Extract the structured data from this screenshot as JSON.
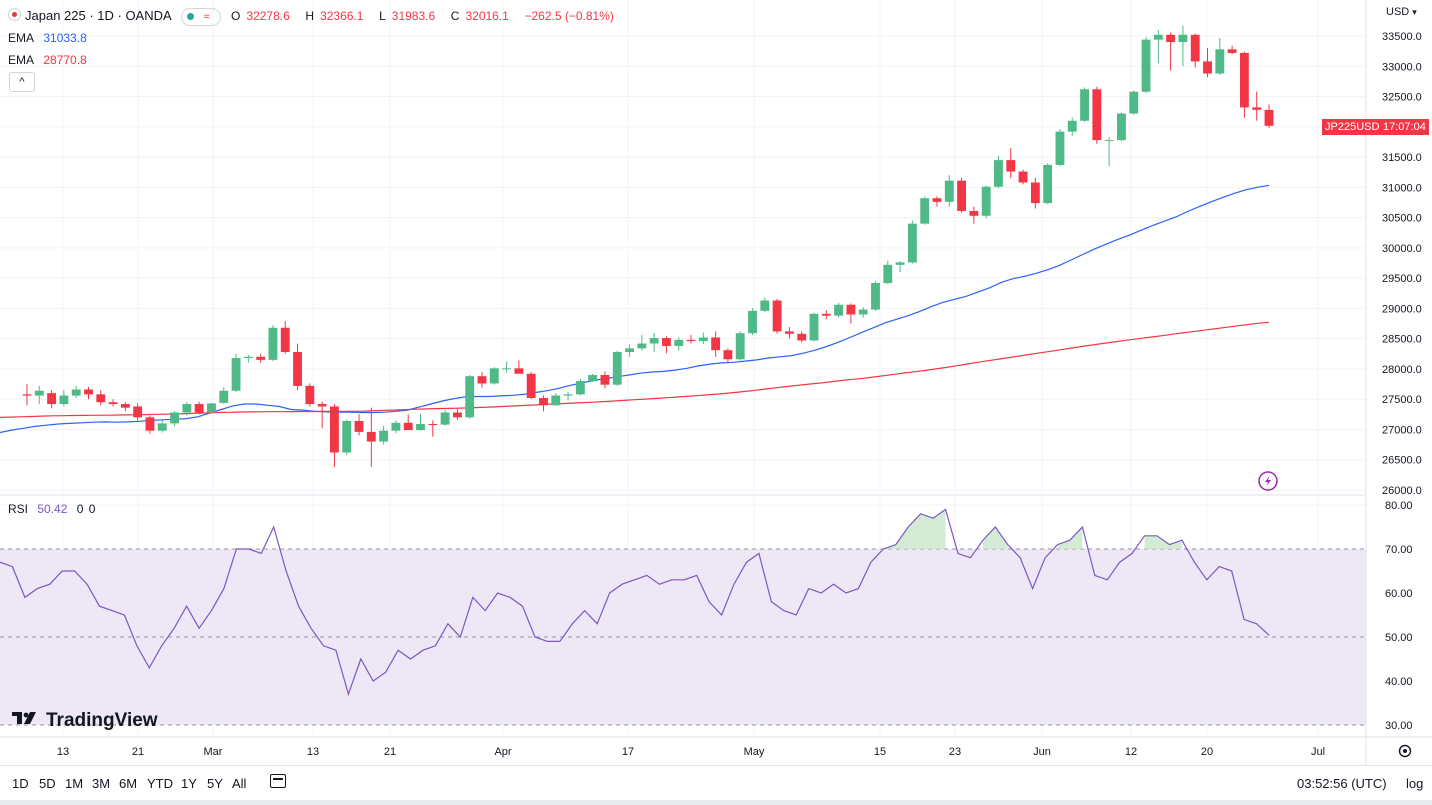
{
  "header": {
    "symbol_title": "Japan 225 · 1D · OANDA",
    "ohlc": {
      "o_label": "O",
      "o_value": "32278.6",
      "h_label": "H",
      "h_value": "32366.1",
      "l_label": "L",
      "l_value": "31983.6",
      "c_label": "C",
      "c_value": "32016.1",
      "change": "−262.5 (−0.81%)"
    },
    "change_color": "#f23645"
  },
  "indicators": {
    "ema1": {
      "label": "EMA",
      "value": "31033.8",
      "color": "#2962ff"
    },
    "ema2": {
      "label": "EMA",
      "value": "28770.8",
      "color": "#f23645"
    },
    "rsi": {
      "label": "RSI",
      "value": "50.42",
      "extra1": "0",
      "extra2": "0",
      "color": "#7e57c2"
    }
  },
  "collapse_label": "^",
  "price_axis": {
    "currency": "USD",
    "ticks": [
      "33500.0",
      "33000.0",
      "32500.0",
      "32000.0",
      "31500.0",
      "31000.0",
      "30500.0",
      "30000.0",
      "29500.0",
      "29000.0",
      "28500.0",
      "28000.0",
      "27500.0",
      "27000.0",
      "26500.0",
      "26000.0"
    ],
    "last_tag_symbol": "JP225USD",
    "last_tag_time": "17:07:04",
    "last_tag_color": "#f23645"
  },
  "rsi_axis": {
    "ticks": [
      "80.00",
      "70.00",
      "60.00",
      "50.00",
      "40.00",
      "30.00"
    ]
  },
  "time_axis": {
    "labels": [
      "13",
      "21",
      "Mar",
      "13",
      "21",
      "Apr",
      "17",
      "May",
      "15",
      "23",
      "Jun",
      "12",
      "20",
      "Jul"
    ]
  },
  "bottom_bar": {
    "ranges": [
      "1D",
      "5D",
      "1M",
      "3M",
      "6M",
      "YTD",
      "1Y",
      "5Y",
      "All"
    ],
    "clock": "03:52:56 (UTC)",
    "log_label": "log"
  },
  "branding": {
    "logo_text": "TradingView"
  },
  "colors": {
    "up": "#26a69a",
    "up_fill": "#4fb987",
    "down": "#f23645",
    "ema_fast": "#2962ff",
    "ema_slow": "#f23645",
    "rsi_line": "#7e57c2",
    "rsi_band": "#ede7f6"
  },
  "chart_data": [
    {
      "type": "candlestick",
      "title": "Japan 225 · 1D · OANDA",
      "ylim": [
        26000,
        33700
      ],
      "candles": [
        {
          "o": 27580,
          "h": 27750,
          "l": 27400,
          "c": 27560
        },
        {
          "o": 27560,
          "h": 27720,
          "l": 27420,
          "c": 27640
        },
        {
          "o": 27600,
          "h": 27650,
          "l": 27350,
          "c": 27420
        },
        {
          "o": 27420,
          "h": 27650,
          "l": 27380,
          "c": 27560
        },
        {
          "o": 27560,
          "h": 27720,
          "l": 27520,
          "c": 27660
        },
        {
          "o": 27660,
          "h": 27700,
          "l": 27500,
          "c": 27580
        },
        {
          "o": 27580,
          "h": 27650,
          "l": 27400,
          "c": 27450
        },
        {
          "o": 27450,
          "h": 27500,
          "l": 27380,
          "c": 27420
        },
        {
          "o": 27420,
          "h": 27450,
          "l": 27300,
          "c": 27360
        },
        {
          "o": 27380,
          "h": 27430,
          "l": 27150,
          "c": 27200
        },
        {
          "o": 27200,
          "h": 27230,
          "l": 26930,
          "c": 26980
        },
        {
          "o": 26980,
          "h": 27150,
          "l": 26950,
          "c": 27100
        },
        {
          "o": 27100,
          "h": 27300,
          "l": 27050,
          "c": 27280
        },
        {
          "o": 27280,
          "h": 27450,
          "l": 27230,
          "c": 27420
        },
        {
          "o": 27420,
          "h": 27460,
          "l": 27250,
          "c": 27280
        },
        {
          "o": 27280,
          "h": 27440,
          "l": 27260,
          "c": 27430
        },
        {
          "o": 27440,
          "h": 27700,
          "l": 27420,
          "c": 27640
        },
        {
          "o": 27640,
          "h": 28250,
          "l": 27620,
          "c": 28180
        },
        {
          "o": 28180,
          "h": 28230,
          "l": 28100,
          "c": 28200
        },
        {
          "o": 28200,
          "h": 28250,
          "l": 28100,
          "c": 28150
        },
        {
          "o": 28150,
          "h": 28720,
          "l": 28130,
          "c": 28680
        },
        {
          "o": 28680,
          "h": 28790,
          "l": 28250,
          "c": 28280
        },
        {
          "o": 28280,
          "h": 28420,
          "l": 27650,
          "c": 27720
        },
        {
          "o": 27720,
          "h": 27760,
          "l": 27380,
          "c": 27420
        },
        {
          "o": 27420,
          "h": 27460,
          "l": 27020,
          "c": 27380
        },
        {
          "o": 27380,
          "h": 27420,
          "l": 26380,
          "c": 26620
        },
        {
          "o": 26620,
          "h": 27160,
          "l": 26580,
          "c": 27140
        },
        {
          "o": 27140,
          "h": 27250,
          "l": 26900,
          "c": 26960
        },
        {
          "o": 26960,
          "h": 27360,
          "l": 26380,
          "c": 26800
        },
        {
          "o": 26800,
          "h": 27060,
          "l": 26750,
          "c": 26980
        },
        {
          "o": 26980,
          "h": 27150,
          "l": 26940,
          "c": 27110
        },
        {
          "o": 27110,
          "h": 27250,
          "l": 27000,
          "c": 26990
        },
        {
          "o": 26990,
          "h": 27260,
          "l": 26980,
          "c": 27090
        },
        {
          "o": 27090,
          "h": 27150,
          "l": 26880,
          "c": 27080
        },
        {
          "o": 27080,
          "h": 27320,
          "l": 27060,
          "c": 27280
        },
        {
          "o": 27280,
          "h": 27350,
          "l": 27160,
          "c": 27200
        },
        {
          "o": 27200,
          "h": 27900,
          "l": 27180,
          "c": 27880
        },
        {
          "o": 27880,
          "h": 27950,
          "l": 27690,
          "c": 27760
        },
        {
          "o": 27760,
          "h": 28030,
          "l": 27740,
          "c": 28010
        },
        {
          "o": 28010,
          "h": 28120,
          "l": 27940,
          "c": 28010
        },
        {
          "o": 28010,
          "h": 28140,
          "l": 27950,
          "c": 27920
        },
        {
          "o": 27920,
          "h": 27950,
          "l": 27500,
          "c": 27520
        },
        {
          "o": 27520,
          "h": 27560,
          "l": 27300,
          "c": 27400
        },
        {
          "o": 27400,
          "h": 27600,
          "l": 27390,
          "c": 27560
        },
        {
          "o": 27560,
          "h": 27620,
          "l": 27480,
          "c": 27580
        },
        {
          "o": 27580,
          "h": 27840,
          "l": 27560,
          "c": 27800
        },
        {
          "o": 27800,
          "h": 27920,
          "l": 27780,
          "c": 27900
        },
        {
          "o": 27900,
          "h": 27960,
          "l": 27680,
          "c": 27740
        },
        {
          "o": 27740,
          "h": 28300,
          "l": 27720,
          "c": 28280
        },
        {
          "o": 28280,
          "h": 28400,
          "l": 28200,
          "c": 28340
        },
        {
          "o": 28340,
          "h": 28560,
          "l": 28300,
          "c": 28420
        },
        {
          "o": 28420,
          "h": 28590,
          "l": 28280,
          "c": 28510
        },
        {
          "o": 28510,
          "h": 28540,
          "l": 28260,
          "c": 28380
        },
        {
          "o": 28380,
          "h": 28520,
          "l": 28300,
          "c": 28480
        },
        {
          "o": 28480,
          "h": 28560,
          "l": 28420,
          "c": 28460
        },
        {
          "o": 28460,
          "h": 28600,
          "l": 28410,
          "c": 28520
        },
        {
          "o": 28520,
          "h": 28620,
          "l": 28200,
          "c": 28310
        },
        {
          "o": 28310,
          "h": 28340,
          "l": 28100,
          "c": 28160
        },
        {
          "o": 28160,
          "h": 28620,
          "l": 28140,
          "c": 28590
        },
        {
          "o": 28590,
          "h": 29000,
          "l": 28560,
          "c": 28960
        },
        {
          "o": 28960,
          "h": 29180,
          "l": 28940,
          "c": 29130
        },
        {
          "o": 29130,
          "h": 29160,
          "l": 28580,
          "c": 28620
        },
        {
          "o": 28620,
          "h": 28690,
          "l": 28500,
          "c": 28580
        },
        {
          "o": 28580,
          "h": 28620,
          "l": 28440,
          "c": 28470
        },
        {
          "o": 28470,
          "h": 28930,
          "l": 28450,
          "c": 28910
        },
        {
          "o": 28910,
          "h": 28970,
          "l": 28820,
          "c": 28880
        },
        {
          "o": 28880,
          "h": 29090,
          "l": 28850,
          "c": 29060
        },
        {
          "o": 29060,
          "h": 29080,
          "l": 28750,
          "c": 28900
        },
        {
          "o": 28900,
          "h": 29020,
          "l": 28850,
          "c": 28980
        },
        {
          "o": 28980,
          "h": 29450,
          "l": 28960,
          "c": 29420
        },
        {
          "o": 29420,
          "h": 29790,
          "l": 29400,
          "c": 29720
        },
        {
          "o": 29720,
          "h": 29780,
          "l": 29600,
          "c": 29760
        },
        {
          "o": 29760,
          "h": 30450,
          "l": 29740,
          "c": 30400
        },
        {
          "o": 30400,
          "h": 30850,
          "l": 30380,
          "c": 30820
        },
        {
          "o": 30820,
          "h": 30850,
          "l": 30680,
          "c": 30760
        },
        {
          "o": 30760,
          "h": 31200,
          "l": 30680,
          "c": 31110
        },
        {
          "o": 31110,
          "h": 31160,
          "l": 30580,
          "c": 30610
        },
        {
          "o": 30610,
          "h": 30680,
          "l": 30400,
          "c": 30530
        },
        {
          "o": 30530,
          "h": 31030,
          "l": 30490,
          "c": 31010
        },
        {
          "o": 31010,
          "h": 31520,
          "l": 30990,
          "c": 31450
        },
        {
          "o": 31450,
          "h": 31650,
          "l": 31150,
          "c": 31260
        },
        {
          "o": 31260,
          "h": 31290,
          "l": 31050,
          "c": 31080
        },
        {
          "o": 31080,
          "h": 31160,
          "l": 30650,
          "c": 30740
        },
        {
          "o": 30740,
          "h": 31400,
          "l": 30720,
          "c": 31370
        },
        {
          "o": 31370,
          "h": 31960,
          "l": 31350,
          "c": 31920
        },
        {
          "o": 31920,
          "h": 32150,
          "l": 31850,
          "c": 32100
        },
        {
          "o": 32100,
          "h": 32650,
          "l": 32080,
          "c": 32620
        },
        {
          "o": 32620,
          "h": 32660,
          "l": 31720,
          "c": 31780
        },
        {
          "o": 31780,
          "h": 31830,
          "l": 31350,
          "c": 31780
        },
        {
          "o": 31780,
          "h": 32240,
          "l": 31760,
          "c": 32220
        },
        {
          "o": 32220,
          "h": 32600,
          "l": 32200,
          "c": 32580
        },
        {
          "o": 32580,
          "h": 33480,
          "l": 32560,
          "c": 33440
        },
        {
          "o": 33440,
          "h": 33600,
          "l": 33050,
          "c": 33520
        },
        {
          "o": 33520,
          "h": 33560,
          "l": 32930,
          "c": 33400
        },
        {
          "o": 33400,
          "h": 33670,
          "l": 33000,
          "c": 33520
        },
        {
          "o": 33520,
          "h": 33540,
          "l": 32980,
          "c": 33080
        },
        {
          "o": 33080,
          "h": 33300,
          "l": 32820,
          "c": 32880
        },
        {
          "o": 32880,
          "h": 33470,
          "l": 32860,
          "c": 33280
        },
        {
          "o": 33280,
          "h": 33340,
          "l": 33200,
          "c": 33220
        },
        {
          "o": 33220,
          "h": 33240,
          "l": 32150,
          "c": 32320
        },
        {
          "o": 32320,
          "h": 32580,
          "l": 32100,
          "c": 32280
        },
        {
          "o": 32278.6,
          "h": 32366.1,
          "l": 31983.6,
          "c": 32016.1
        }
      ]
    },
    {
      "type": "line",
      "series": [
        {
          "name": "EMA",
          "color": "#2962ff",
          "values": [
            26950,
            26990,
            27020,
            27050,
            27070,
            27090,
            27100,
            27110,
            27120,
            27125,
            27120,
            27125,
            27135,
            27150,
            27160,
            27170,
            27180,
            27210,
            27270,
            27330,
            27390,
            27420,
            27420,
            27400,
            27380,
            27330,
            27320,
            27300,
            27290,
            27285,
            27285,
            27280,
            27280,
            27285,
            27300,
            27320,
            27370,
            27420,
            27470,
            27510,
            27540,
            27545,
            27545,
            27555,
            27565,
            27580,
            27610,
            27640,
            27680,
            27730,
            27770,
            27810,
            27840,
            27870,
            27900,
            27930,
            27950,
            27960,
            27980,
            28010,
            28050,
            28080,
            28100,
            28110,
            28130,
            28150,
            28180,
            28200,
            28220,
            28260,
            28310,
            28370,
            28440,
            28520,
            28600,
            28680,
            28760,
            28820,
            28880,
            28950,
            29030,
            29100,
            29150,
            29200,
            29270,
            29340,
            29430,
            29490,
            29530,
            29580,
            29640,
            29710,
            29800,
            29890,
            29980,
            30060,
            30140,
            30210,
            30290,
            30370,
            30440,
            30510,
            30600,
            30680,
            30760,
            30830,
            30900,
            30960,
            31000,
            31033.8
          ]
        },
        {
          "name": "EMA",
          "color": "#f23645",
          "values": [
            27200,
            27205,
            27210,
            27215,
            27220,
            27225,
            27228,
            27230,
            27232,
            27234,
            27236,
            27238,
            27240,
            27243,
            27246,
            27250,
            27253,
            27257,
            27262,
            27268,
            27274,
            27280,
            27284,
            27288,
            27290,
            27292,
            27293,
            27294,
            27295,
            27296,
            27297,
            27298,
            27299,
            27300,
            27302,
            27304,
            27310,
            27316,
            27322,
            27328,
            27334,
            27340,
            27344,
            27348,
            27352,
            27357,
            27363,
            27370,
            27378,
            27386,
            27395,
            27403,
            27411,
            27420,
            27428,
            27436,
            27444,
            27451,
            27460,
            27470,
            27481,
            27492,
            27502,
            27512,
            27523,
            27534,
            27546,
            27558,
            27571,
            27585,
            27600,
            27617,
            27636,
            27656,
            27676,
            27696,
            27716,
            27734,
            27752,
            27770,
            27790,
            27810,
            27828,
            27846,
            27866,
            27888,
            27912,
            27934,
            27954,
            27976,
            28000,
            28026,
            28054,
            28082,
            28110,
            28136,
            28162,
            28188,
            28214,
            28240,
            28266,
            28292,
            28318,
            28344,
            28370,
            28396,
            28420,
            28444,
            28466,
            28490,
            28512,
            28534,
            28556,
            28580,
            28602,
            28624,
            28646,
            28668,
            28690,
            28712,
            28734,
            28756,
            28770.8
          ]
        }
      ]
    },
    {
      "type": "line",
      "title": "RSI",
      "ylim": [
        27,
        81
      ],
      "bands": [
        30,
        50,
        70
      ],
      "series": [
        {
          "name": "RSI",
          "color": "#7e57c2",
          "values": [
            67,
            66,
            59,
            61,
            62,
            65,
            65,
            62,
            57,
            56,
            55,
            48,
            43,
            48,
            52,
            57,
            52,
            56,
            61,
            70,
            70,
            69,
            75,
            65,
            57,
            52,
            48,
            47,
            37,
            45,
            40,
            42,
            47,
            45,
            47,
            48,
            53,
            50,
            59,
            56,
            60,
            59,
            57,
            50,
            49,
            49,
            53,
            56,
            53,
            60,
            62,
            63,
            64,
            62,
            63,
            63,
            64,
            58,
            55,
            62,
            67,
            69,
            58,
            56,
            55,
            61,
            60,
            62,
            60,
            61,
            67,
            70,
            71,
            75,
            78,
            77,
            79,
            69,
            68,
            72,
            75,
            71,
            68,
            61,
            68,
            71,
            72,
            75,
            64,
            63,
            67,
            69,
            73,
            73,
            71,
            72,
            67,
            63,
            66,
            65,
            54,
            53,
            50.42
          ]
        }
      ]
    }
  ]
}
